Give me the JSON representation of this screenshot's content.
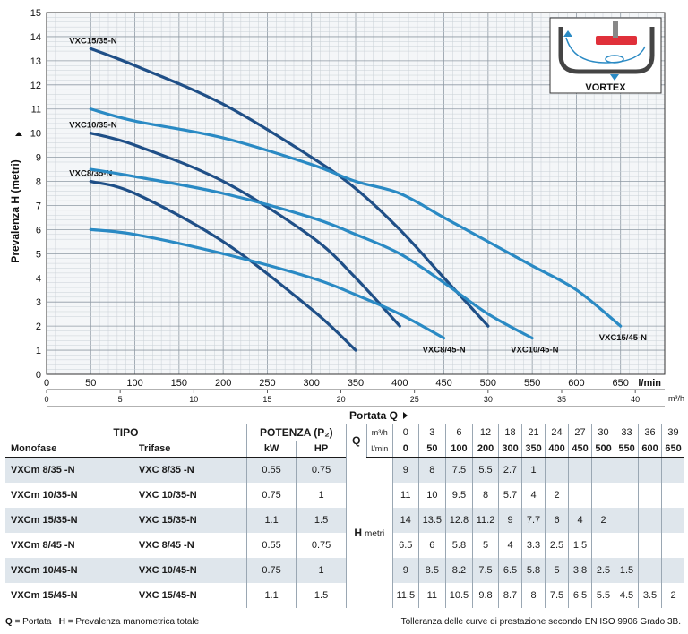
{
  "chart_data": {
    "type": "line",
    "ylabel": "Prevalenza H (metri)",
    "xlabel": "Portata Q",
    "x_unit_primary": "l/min",
    "x_unit_secondary": "m³/h",
    "xlim": [
      0,
      700
    ],
    "ylim": [
      0,
      15
    ],
    "x_ticks": [
      0,
      50,
      100,
      150,
      200,
      250,
      300,
      350,
      400,
      450,
      500,
      550,
      600,
      650
    ],
    "x2_ticks": [
      0,
      5,
      10,
      15,
      20,
      25,
      30,
      35,
      40
    ],
    "y_ticks": [
      0,
      1,
      2,
      3,
      4,
      5,
      6,
      7,
      8,
      9,
      10,
      11,
      12,
      13,
      14,
      15
    ],
    "grid": true,
    "series": [
      {
        "name": "VXC8/35-N",
        "label_pos": "start",
        "color": "#1f4f87",
        "x": [
          50,
          100,
          200,
          300,
          350
        ],
        "y": [
          8,
          7.5,
          5.5,
          2.7,
          1
        ]
      },
      {
        "name": "VXC10/35-N",
        "label_pos": "start",
        "color": "#1f4f87",
        "x": [
          50,
          100,
          200,
          300,
          350,
          400
        ],
        "y": [
          10,
          9.5,
          8,
          5.7,
          4,
          2
        ]
      },
      {
        "name": "VXC15/35-N",
        "label_pos": "start",
        "color": "#1f4f87",
        "x": [
          50,
          100,
          200,
          300,
          350,
          400,
          450,
          500
        ],
        "y": [
          13.5,
          12.8,
          11.2,
          9,
          7.7,
          6,
          4,
          2
        ]
      },
      {
        "name": "VXC8/45-N",
        "label_pos": "end",
        "color": "#2a8ac4",
        "x": [
          50,
          100,
          200,
          300,
          350,
          400,
          450
        ],
        "y": [
          6,
          5.8,
          5,
          4,
          3.3,
          2.5,
          1.5
        ]
      },
      {
        "name": "VXC10/45-N",
        "label_pos": "end",
        "color": "#2a8ac4",
        "x": [
          50,
          100,
          200,
          300,
          350,
          400,
          450,
          500,
          550
        ],
        "y": [
          8.5,
          8.2,
          7.5,
          6.5,
          5.8,
          5,
          3.8,
          2.5,
          1.5
        ]
      },
      {
        "name": "VXC15/45-N",
        "label_pos": "end",
        "color": "#2a8ac4",
        "x": [
          50,
          100,
          200,
          300,
          350,
          400,
          450,
          500,
          550,
          600,
          650
        ],
        "y": [
          11,
          10.5,
          9.8,
          8.7,
          8,
          7.5,
          6.5,
          5.5,
          4.5,
          3.5,
          2
        ]
      }
    ]
  },
  "inset": {
    "label": "VORTEX"
  },
  "table": {
    "tipo": "TIPO",
    "potenza": "POTENZA (P₂)",
    "monofase": "Monofase",
    "trifase": "Trifase",
    "kw": "kW",
    "hp": "HP",
    "q_label": "Q",
    "q_unit_m3h": "m³/h",
    "q_unit_lmin": "l/min",
    "h_label": "H",
    "h_unit": "metri",
    "q_m3h": [
      "0",
      "3",
      "6",
      "12",
      "18",
      "21",
      "24",
      "27",
      "30",
      "33",
      "36",
      "39"
    ],
    "q_lmin": [
      "0",
      "50",
      "100",
      "200",
      "300",
      "350",
      "400",
      "450",
      "500",
      "550",
      "600",
      "650"
    ],
    "rows": [
      {
        "mono": "VXCm 8/35  -N",
        "tri": "VXC 8/35  -N",
        "kw": "0.55",
        "hp": "0.75",
        "h": [
          "9",
          "8",
          "7.5",
          "5.5",
          "2.7",
          "1",
          "",
          "",
          "",
          "",
          "",
          ""
        ]
      },
      {
        "mono": "VXCm 10/35-N",
        "tri": "VXC 10/35-N",
        "kw": "0.75",
        "hp": "1",
        "h": [
          "11",
          "10",
          "9.5",
          "8",
          "5.7",
          "4",
          "2",
          "",
          "",
          "",
          "",
          ""
        ]
      },
      {
        "mono": "VXCm 15/35-N",
        "tri": "VXC 15/35-N",
        "kw": "1.1",
        "hp": "1.5",
        "h": [
          "14",
          "13.5",
          "12.8",
          "11.2",
          "9",
          "7.7",
          "6",
          "4",
          "2",
          "",
          "",
          ""
        ]
      },
      {
        "mono": "VXCm 8/45  -N",
        "tri": "VXC 8/45  -N",
        "kw": "0.55",
        "hp": "0.75",
        "h": [
          "6.5",
          "6",
          "5.8",
          "5",
          "4",
          "3.3",
          "2.5",
          "1.5",
          "",
          "",
          "",
          ""
        ]
      },
      {
        "mono": "VXCm 10/45-N",
        "tri": "VXC 10/45-N",
        "kw": "0.75",
        "hp": "1",
        "h": [
          "9",
          "8.5",
          "8.2",
          "7.5",
          "6.5",
          "5.8",
          "5",
          "3.8",
          "2.5",
          "1.5",
          "",
          ""
        ]
      },
      {
        "mono": "VXCm 15/45-N",
        "tri": "VXC 15/45-N",
        "kw": "1.1",
        "hp": "1.5",
        "h": [
          "11.5",
          "11",
          "10.5",
          "9.8",
          "8.7",
          "8",
          "7.5",
          "6.5",
          "5.5",
          "4.5",
          "3.5",
          "2"
        ]
      }
    ]
  },
  "footer": {
    "legend_q": "Q",
    "legend_q_text": "= Portata",
    "legend_h": "H",
    "legend_h_text": "= Prevalenza manometrica totale",
    "tolerance": "Tolleranza delle curve di prestazione secondo EN ISO 9906 Grado 3B."
  },
  "colors": {
    "dark": "#1f4f87",
    "light": "#2a8ac4",
    "shade": "#dfe6ec"
  }
}
